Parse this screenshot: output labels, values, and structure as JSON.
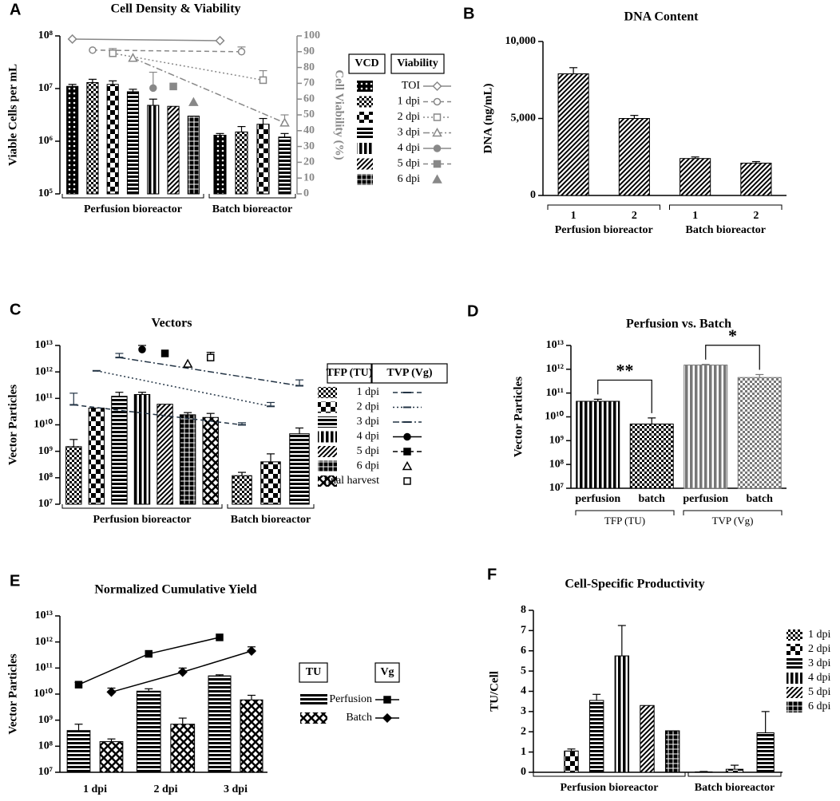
{
  "chart_data": [
    {
      "panel": "A",
      "type": "bar",
      "title": "Cell Density & Viability",
      "ylabel": "Viable Cells per mL",
      "y2label": "Cell Viability (%)",
      "y2color": "#888888",
      "log_y": true,
      "ylim": [
        100000.0,
        100000000.0
      ],
      "yticks": [
        {
          "value": 100000.0,
          "label": "10⁵"
        },
        {
          "value": 1000000.0,
          "label": "10⁶"
        },
        {
          "value": 10000000.0,
          "label": "10⁷"
        },
        {
          "value": 100000000.0,
          "label": "10⁸"
        }
      ],
      "y2lim": [
        0,
        100
      ],
      "y2ticks": [
        0,
        10,
        20,
        30,
        40,
        50,
        60,
        70,
        80,
        90,
        100
      ],
      "categories": [
        "Perfusion bioreactor",
        "Batch bioreactor"
      ],
      "legend_headers": [
        "VCD",
        "Viability"
      ],
      "series": [
        {
          "name": "TOI",
          "pattern": "dots",
          "color": "#000000",
          "values": [
            11000000.0,
            1300000.0
          ],
          "errors": [
            1000000.0,
            100000.0
          ]
        },
        {
          "name": "1 dpi",
          "pattern": "checker",
          "color": "#000000",
          "values": [
            13000000.0,
            1500000.0
          ],
          "errors": [
            2000000.0,
            400000.0
          ]
        },
        {
          "name": "2 dpi",
          "pattern": "bigchecker",
          "color": "#000000",
          "values": [
            12000000.0,
            2100000.0
          ],
          "errors": [
            2000000.0,
            600000.0
          ]
        },
        {
          "name": "3 dpi",
          "pattern": "hstripe",
          "color": "#000000",
          "values": [
            8700000.0,
            1200000.0
          ],
          "errors": [
            1000000.0,
            200000.0
          ]
        },
        {
          "name": "4 dpi",
          "pattern": "vstripe",
          "color": "#000000",
          "values": [
            4800000.0,
            null
          ],
          "errors": [
            1500000.0,
            null
          ]
        },
        {
          "name": "5 dpi",
          "pattern": "diag",
          "color": "#000000",
          "values": [
            4600000.0,
            null
          ]
        },
        {
          "name": "6 dpi",
          "pattern": "grid",
          "color": "#000000",
          "values": [
            3000000.0,
            null
          ]
        }
      ],
      "line_series": [
        {
          "axis": "y2",
          "color": "#888888",
          "marker": "diamond",
          "filled": false,
          "dash": "solid",
          "values": [
            98,
            97
          ]
        },
        {
          "axis": "y2",
          "color": "#888888",
          "marker": "circle",
          "filled": false,
          "dash": "dash",
          "values": [
            91,
            90
          ],
          "errors": [
            null,
            3
          ]
        },
        {
          "axis": "y2",
          "color": "#888888",
          "marker": "square",
          "filled": false,
          "dash": "dot",
          "values": [
            89,
            72
          ],
          "errors": [
            3,
            6
          ]
        },
        {
          "axis": "y2",
          "color": "#888888",
          "marker": "triangle",
          "filled": false,
          "dash": "dashdot",
          "values": [
            86,
            45
          ],
          "errors": [
            null,
            5
          ]
        },
        {
          "axis": "y2",
          "color": "#888888",
          "marker": "circle",
          "filled": true,
          "dash": "solid",
          "values": [
            67,
            null
          ],
          "errors": [
            10,
            null
          ]
        },
        {
          "axis": "y2",
          "color": "#888888",
          "marker": "square",
          "filled": true,
          "dash": "dash",
          "values": [
            68,
            null
          ]
        },
        {
          "axis": "y2",
          "color": "#888888",
          "marker": "triangle",
          "filled": true,
          "dash": "none",
          "values": [
            58,
            null
          ]
        }
      ]
    },
    {
      "panel": "B",
      "type": "bar",
      "title": "DNA Content",
      "ylabel": "DNA (ng/mL)",
      "ylim": [
        0,
        10000
      ],
      "yticks": [
        0,
        {
          "value": 5000,
          "label": "5,000"
        },
        {
          "value": 10000,
          "label": "10,000"
        }
      ],
      "categories": [
        "1",
        "2",
        "1",
        "2"
      ],
      "groups": [
        "Perfusion bioreactor",
        "Batch bioreactor"
      ],
      "values": [
        7900,
        5000,
        2400,
        2100
      ],
      "errors": [
        400,
        200,
        100,
        100
      ],
      "patterns": [
        "diag",
        "diag",
        "diag",
        "diag"
      ],
      "colors": [
        "#000000",
        "#000000",
        "#000000",
        "#000000"
      ]
    },
    {
      "panel": "C",
      "type": "bar",
      "title": "Vectors",
      "ylabel": "Vector Particles",
      "log_y": true,
      "ylim": [
        10000000.0,
        10000000000000.0
      ],
      "yticks": [
        {
          "value": 10000000.0,
          "label": "10⁷"
        },
        {
          "value": 100000000.0,
          "label": "10⁸"
        },
        {
          "value": 1000000000.0,
          "label": "10⁹"
        },
        {
          "value": 10000000000.0,
          "label": "10¹⁰"
        },
        {
          "value": 100000000000.0,
          "label": "10¹¹"
        },
        {
          "value": 1000000000000.0,
          "label": "10¹²"
        },
        {
          "value": 10000000000000.0,
          "label": "10¹³"
        }
      ],
      "categories": [
        "Perfusion bioreactor",
        "Batch bioreactor"
      ],
      "legend_headers": [
        "TFP (TU)",
        "TVP (Vg)"
      ],
      "series": [
        {
          "name": "1 dpi",
          "pattern": "checker",
          "color": "#000000",
          "values": [
            1500000000.0,
            120000000.0
          ],
          "errors": [
            1300000000.0,
            40000000.0
          ]
        },
        {
          "name": "2 dpi",
          "pattern": "bigchecker",
          "color": "#000000",
          "values": [
            43000000000.0,
            400000000.0
          ],
          "errors": [
            null,
            400000000.0
          ]
        },
        {
          "name": "3 dpi",
          "pattern": "hstripe",
          "color": "#000000",
          "values": [
            120000000000.0,
            4600000000.0
          ],
          "errors": [
            50000000000.0,
            3000000000.0
          ]
        },
        {
          "name": "4 dpi",
          "pattern": "vstripe",
          "color": "#000000",
          "values": [
            140000000000.0,
            null
          ],
          "errors": [
            30000000000.0,
            null
          ]
        },
        {
          "name": "5 dpi",
          "pattern": "diag",
          "color": "#000000",
          "values": [
            60000000000.0,
            null
          ]
        },
        {
          "name": "6 dpi",
          "pattern": "grid",
          "color": "#000000",
          "values": [
            24000000000.0,
            null
          ],
          "errors": [
            5000000000.0,
            null
          ]
        },
        {
          "name": "final harvest",
          "pattern": "zigzag",
          "color": "#000000",
          "values": [
            19000000000.0,
            null
          ],
          "errors": [
            8000000000.0,
            null
          ]
        }
      ],
      "line_series": [
        {
          "color": "#223344",
          "marker": "tick",
          "filled": true,
          "dash": "dash",
          "values": [
            57000000000.0,
            10000000000.0
          ],
          "errors": [
            100000000000.0,
            2000000000.0
          ]
        },
        {
          "color": "#223344",
          "marker": "tick",
          "filled": true,
          "dash": "dot",
          "values": [
            1100000000000.0,
            50000000000.0
          ],
          "errors": [
            null,
            20000000000.0
          ]
        },
        {
          "color": "#223344",
          "marker": "tick",
          "filled": true,
          "dash": "dashdot",
          "values": [
            3500000000000.0,
            300000000000.0
          ],
          "errors": [
            1500000000000.0,
            200000000000.0
          ]
        },
        {
          "color": "#000000",
          "marker": "circle",
          "filled": true,
          "dash": "solid",
          "values": [
            7000000000000.0,
            null
          ],
          "errors": [
            3000000000000.0,
            null
          ]
        },
        {
          "color": "#000000",
          "marker": "square",
          "filled": true,
          "dash": "dash",
          "values": [
            5000000000000.0,
            null
          ]
        },
        {
          "color": "#000000",
          "marker": "triangle",
          "filled": false,
          "dash": "none",
          "values": [
            2000000000000.0,
            null
          ]
        },
        {
          "color": "#000000",
          "marker": "square",
          "filled": false,
          "dash": "none",
          "values": [
            3500000000000.0,
            null
          ],
          "errors": [
            2000000000000.0,
            null
          ]
        }
      ]
    },
    {
      "panel": "D",
      "type": "bar",
      "title": "Perfusion vs. Batch",
      "ylabel": "Vector Particles",
      "log_y": true,
      "ylim": [
        10000000.0,
        10000000000000.0
      ],
      "yticks": [
        {
          "value": 10000000.0,
          "label": "10⁷"
        },
        {
          "value": 100000000.0,
          "label": "10⁸"
        },
        {
          "value": 1000000000.0,
          "label": "10⁹"
        },
        {
          "value": 10000000000.0,
          "label": "10¹⁰"
        },
        {
          "value": 100000000000.0,
          "label": "10¹¹"
        },
        {
          "value": 1000000000000.0,
          "label": "10¹²"
        },
        {
          "value": 10000000000000.0,
          "label": "10¹³"
        }
      ],
      "categories": [
        "perfusion",
        "batch",
        "perfusion",
        "batch"
      ],
      "groups": [
        "TFP (TU)",
        "TVP (Vg)"
      ],
      "values": [
        45000000000.0,
        5000000000.0,
        1500000000000.0,
        450000000000.0
      ],
      "errors": [
        10000000000.0,
        4000000000.0,
        100000000000.0,
        150000000000.0
      ],
      "patterns": [
        "vstripe",
        "checker",
        "vstripe",
        "checker"
      ],
      "colors": [
        "#000000",
        "#000000",
        "#777777",
        "#777777"
      ],
      "annotations": [
        "**",
        "*"
      ]
    },
    {
      "panel": "E",
      "type": "bar",
      "title": "Normalized Cumulative Yield",
      "ylabel": "Vector Particles",
      "log_y": true,
      "ylim": [
        10000000.0,
        10000000000000.0
      ],
      "yticks": [
        {
          "value": 10000000.0,
          "label": "10⁷"
        },
        {
          "value": 100000000.0,
          "label": "10⁸"
        },
        {
          "value": 1000000000.0,
          "label": "10⁹"
        },
        {
          "value": 10000000000.0,
          "label": "10¹⁰"
        },
        {
          "value": 100000000000.0,
          "label": "10¹¹"
        },
        {
          "value": 1000000000000.0,
          "label": "10¹²"
        },
        {
          "value": 10000000000000.0,
          "label": "10¹³"
        }
      ],
      "categories": [
        "1 dpi",
        "2 dpi",
        "3 dpi"
      ],
      "legend_headers": [
        "TU",
        "Vg"
      ],
      "series": [
        {
          "name": "Perfusion",
          "pattern": "hstripe",
          "color": "#000000",
          "values": [
            400000000.0,
            13000000000.0,
            50000000000.0
          ],
          "errors": [
            300000000.0,
            3000000000.0,
            5000000000.0
          ]
        },
        {
          "name": "Batch",
          "pattern": "zigzag",
          "color": "#000000",
          "values": [
            150000000.0,
            700000000.0,
            6000000000.0
          ],
          "errors": [
            40000000.0,
            500000000.0,
            3000000000.0
          ]
        }
      ],
      "line_series": [
        {
          "color": "#000000",
          "marker": "square",
          "filled": true,
          "dash": "solid",
          "values": [
            23000000000.0,
            350000000000.0,
            1500000000000.0
          ],
          "errors": [
            5000000000.0,
            null,
            null
          ]
        },
        {
          "color": "#000000",
          "marker": "diamond",
          "filled": true,
          "dash": "solid",
          "values": [
            12000000000.0,
            70000000000.0,
            450000000000.0
          ],
          "errors": [
            5000000000.0,
            30000000000.0,
            200000000000.0
          ]
        }
      ]
    },
    {
      "panel": "F",
      "type": "bar",
      "title": "Cell-Specific Productivity",
      "ylabel": "TU/Cell",
      "ylim": [
        0,
        8
      ],
      "yticks": [
        0,
        1,
        2,
        3,
        4,
        5,
        6,
        7,
        8
      ],
      "categories": [
        "Perfusion bioreactor",
        "Batch bioreactor"
      ],
      "series": [
        {
          "name": "1 dpi",
          "pattern": "checker",
          "color": "#000000",
          "values": [
            0,
            0.02
          ],
          "errors": [
            null,
            0.02
          ]
        },
        {
          "name": "2 dpi",
          "pattern": "bigchecker",
          "color": "#000000",
          "values": [
            1.05,
            0.15
          ],
          "errors": [
            0.1,
            0.2
          ]
        },
        {
          "name": "3 dpi",
          "pattern": "hstripe",
          "color": "#000000",
          "values": [
            3.55,
            1.95
          ],
          "errors": [
            0.3,
            1.05
          ]
        },
        {
          "name": "4 dpi",
          "pattern": "vstripe",
          "color": "#000000",
          "values": [
            5.75,
            null
          ],
          "errors": [
            1.5,
            null
          ]
        },
        {
          "name": "5 dpi",
          "pattern": "diag",
          "color": "#000000",
          "values": [
            3.3,
            null
          ]
        },
        {
          "name": "6 dpi",
          "pattern": "grid",
          "color": "#000000",
          "values": [
            2.05,
            null
          ]
        }
      ]
    }
  ]
}
